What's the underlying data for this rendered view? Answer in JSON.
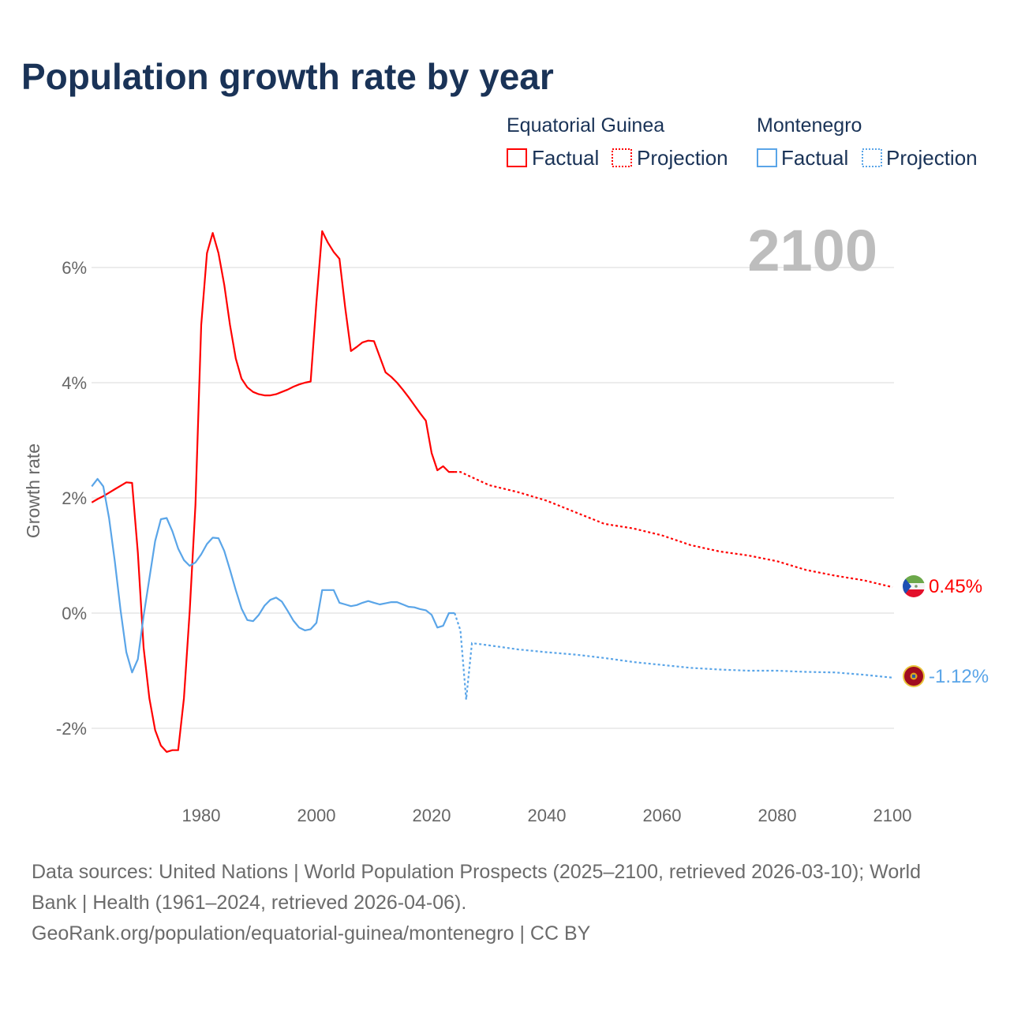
{
  "title": "Population growth rate by year",
  "legend": {
    "groups": [
      {
        "name": "Equatorial Guinea",
        "color": "#ff0000",
        "factual": "Factual",
        "projection": "Projection"
      },
      {
        "name": "Montenegro",
        "color": "#5aa5e8",
        "factual": "Factual",
        "projection": "Projection"
      }
    ]
  },
  "current_year": "2100",
  "footer": {
    "line1": "Data sources: United Nations | World Population Prospects (2025–2100, retrieved 2026-03-10); World",
    "line2": "Bank | Health (1961–2024, retrieved 2026-04-06).",
    "line3": "GeoRank.org/population/equatorial-guinea/montenegro | CC BY"
  },
  "chart_data": {
    "type": "line",
    "title": "Population growth rate by year",
    "xlabel": "",
    "ylabel": "Growth rate",
    "xlim": [
      1961,
      2100
    ],
    "ylim": [
      -3,
      7
    ],
    "x_ticks": [
      1980,
      2000,
      2020,
      2040,
      2060,
      2080,
      2100
    ],
    "x_tick_labels": [
      "1980",
      "2000",
      "2020",
      "2040",
      "2060",
      "2080",
      "2100"
    ],
    "y_ticks": [
      -2,
      0,
      2,
      4,
      6
    ],
    "y_tick_labels": [
      "-2%",
      "0%",
      "2%",
      "4%",
      "6%"
    ],
    "grid": true,
    "legend_position": "top-right",
    "series": [
      {
        "name": "Equatorial Guinea",
        "color": "#ff0000",
        "end_label": "0.45%",
        "factual": {
          "x": [
            1961,
            1962,
            1963,
            1964,
            1965,
            1966,
            1967,
            1968,
            1969,
            1970,
            1971,
            1972,
            1973,
            1974,
            1975,
            1976,
            1977,
            1978,
            1979,
            1980,
            1981,
            1982,
            1983,
            1984,
            1985,
            1986,
            1987,
            1988,
            1989,
            1990,
            1991,
            1992,
            1993,
            1994,
            1995,
            1996,
            1997,
            1998,
            1999,
            2000,
            2001,
            2002,
            2003,
            2004,
            2005,
            2006,
            2007,
            2008,
            2009,
            2010,
            2011,
            2012,
            2013,
            2014,
            2015,
            2016,
            2017,
            2018,
            2019,
            2020,
            2021,
            2022,
            2023,
            2024
          ],
          "y": [
            1.92,
            1.98,
            2.03,
            2.09,
            2.15,
            2.21,
            2.27,
            2.26,
            1.05,
            -0.6,
            -1.48,
            -2.03,
            -2.3,
            -2.41,
            -2.38,
            -2.38,
            -1.48,
            0.03,
            1.88,
            5.0,
            6.25,
            6.6,
            6.25,
            5.7,
            5.0,
            4.42,
            4.07,
            3.92,
            3.84,
            3.8,
            3.78,
            3.78,
            3.8,
            3.84,
            3.88,
            3.93,
            3.97,
            4.0,
            4.02,
            5.4,
            6.63,
            6.43,
            6.27,
            6.15,
            5.3,
            4.55,
            4.62,
            4.7,
            4.73,
            4.72,
            4.45,
            4.18,
            4.1,
            4.0,
            3.88,
            3.75,
            3.61,
            3.47,
            3.34,
            2.78,
            2.48,
            2.55,
            2.45,
            2.45
          ]
        },
        "projection": {
          "x": [
            2024,
            2025,
            2030,
            2035,
            2040,
            2045,
            2050,
            2055,
            2060,
            2065,
            2070,
            2075,
            2080,
            2085,
            2090,
            2095,
            2100
          ],
          "y": [
            2.45,
            2.45,
            2.22,
            2.1,
            1.95,
            1.75,
            1.55,
            1.47,
            1.35,
            1.18,
            1.07,
            1.0,
            0.9,
            0.75,
            0.65,
            0.57,
            0.45
          ]
        }
      },
      {
        "name": "Montenegro",
        "color": "#5aa5e8",
        "end_label": "-1.12%",
        "factual": {
          "x": [
            1961,
            1962,
            1963,
            1964,
            1965,
            1966,
            1967,
            1968,
            1969,
            1970,
            1971,
            1972,
            1973,
            1974,
            1975,
            1976,
            1977,
            1978,
            1979,
            1980,
            1981,
            1982,
            1983,
            1984,
            1985,
            1986,
            1987,
            1988,
            1989,
            1990,
            1991,
            1992,
            1993,
            1994,
            1995,
            1996,
            1997,
            1998,
            1999,
            2000,
            2001,
            2002,
            2003,
            2004,
            2005,
            2006,
            2007,
            2008,
            2009,
            2010,
            2011,
            2012,
            2013,
            2014,
            2015,
            2016,
            2017,
            2018,
            2019,
            2020,
            2021,
            2022,
            2023,
            2024
          ],
          "y": [
            2.2,
            2.33,
            2.2,
            1.65,
            0.9,
            0.05,
            -0.68,
            -1.03,
            -0.8,
            -0.05,
            0.6,
            1.25,
            1.63,
            1.65,
            1.42,
            1.12,
            0.92,
            0.82,
            0.88,
            1.02,
            1.2,
            1.31,
            1.3,
            1.08,
            0.75,
            0.4,
            0.08,
            -0.12,
            -0.14,
            -0.03,
            0.13,
            0.23,
            0.27,
            0.2,
            0.04,
            -0.13,
            -0.25,
            -0.3,
            -0.28,
            -0.17,
            0.4,
            0.4,
            0.4,
            0.18,
            0.15,
            0.12,
            0.14,
            0.18,
            0.21,
            0.18,
            0.15,
            0.17,
            0.19,
            0.19,
            0.15,
            0.11,
            0.1,
            0.07,
            0.05,
            -0.03,
            -0.25,
            -0.22,
            0.0,
            0.0
          ]
        },
        "projection": {
          "x": [
            2024,
            2025,
            2026,
            2027,
            2030,
            2035,
            2040,
            2045,
            2050,
            2055,
            2060,
            2065,
            2070,
            2075,
            2080,
            2085,
            2090,
            2095,
            2100
          ],
          "y": [
            0.0,
            -0.3,
            -1.5,
            -0.52,
            -0.56,
            -0.63,
            -0.68,
            -0.72,
            -0.78,
            -0.85,
            -0.9,
            -0.95,
            -0.98,
            -1.0,
            -1.0,
            -1.02,
            -1.03,
            -1.07,
            -1.12
          ]
        }
      }
    ]
  }
}
